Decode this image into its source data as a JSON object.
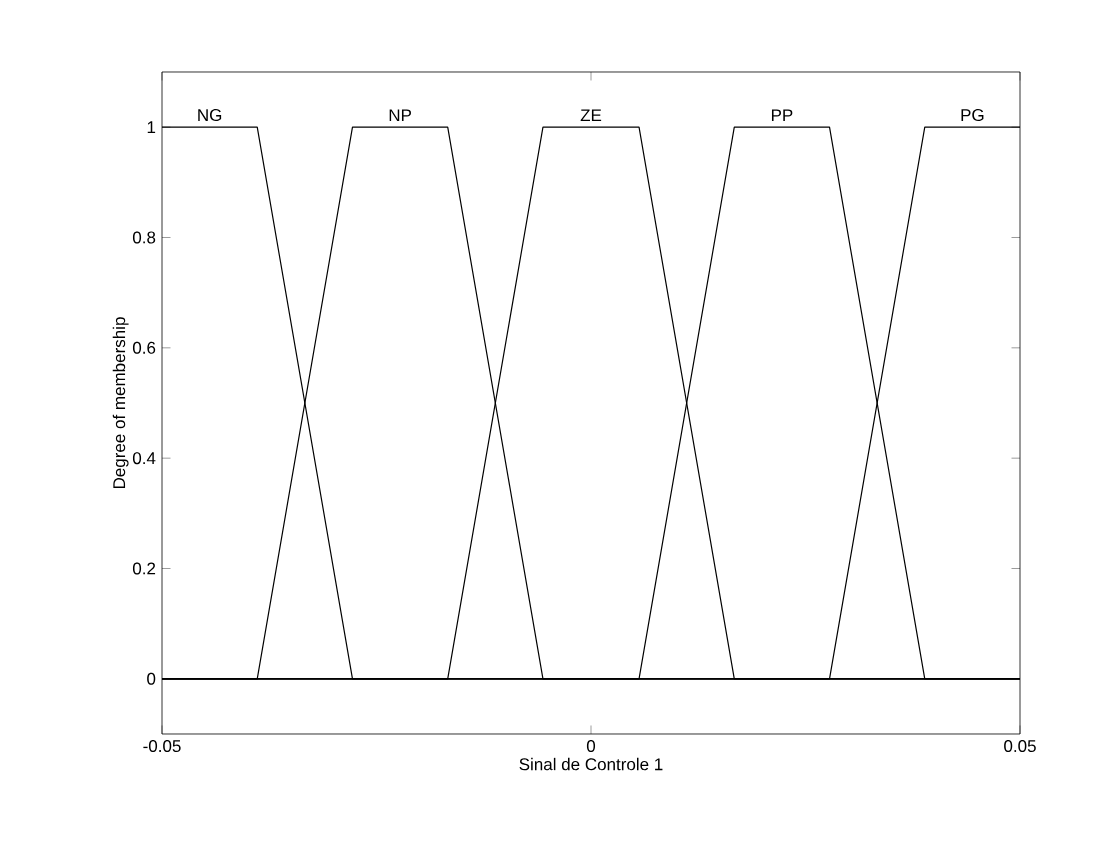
{
  "chart_data": {
    "type": "line",
    "xlabel": "Sinal de Controle 1",
    "ylabel": "Degree of membership",
    "xlim": [
      -0.05,
      0.05
    ],
    "ylim": [
      -0.1,
      1.1
    ],
    "xticks": [
      -0.05,
      0,
      0.05
    ],
    "yticks": [
      0,
      0.2,
      0.4,
      0.6,
      0.8,
      1
    ],
    "grid": false,
    "legend": false,
    "marker": "none",
    "line_style": "solid",
    "series": [
      {
        "name": "NG",
        "color": "#000000",
        "x": [
          -0.05,
          -0.0389,
          -0.0278,
          0.05
        ],
        "values": [
          1,
          1,
          0,
          0
        ]
      },
      {
        "name": "NP",
        "color": "#000000",
        "x": [
          -0.05,
          -0.0389,
          -0.0278,
          -0.0167,
          -0.0056,
          0.05
        ],
        "values": [
          0,
          0,
          1,
          1,
          0,
          0
        ]
      },
      {
        "name": "ZE",
        "color": "#000000",
        "x": [
          -0.05,
          -0.0167,
          -0.0056,
          0.0056,
          0.0167,
          0.05
        ],
        "values": [
          0,
          0,
          1,
          1,
          0,
          0
        ]
      },
      {
        "name": "PP",
        "color": "#000000",
        "x": [
          -0.05,
          0.0056,
          0.0167,
          0.0278,
          0.0389,
          0.05
        ],
        "values": [
          0,
          0,
          1,
          1,
          0,
          0
        ]
      },
      {
        "name": "PG",
        "color": "#000000",
        "x": [
          -0.05,
          0.0278,
          0.0389,
          0.05
        ],
        "values": [
          0,
          0,
          1,
          1
        ]
      }
    ]
  }
}
